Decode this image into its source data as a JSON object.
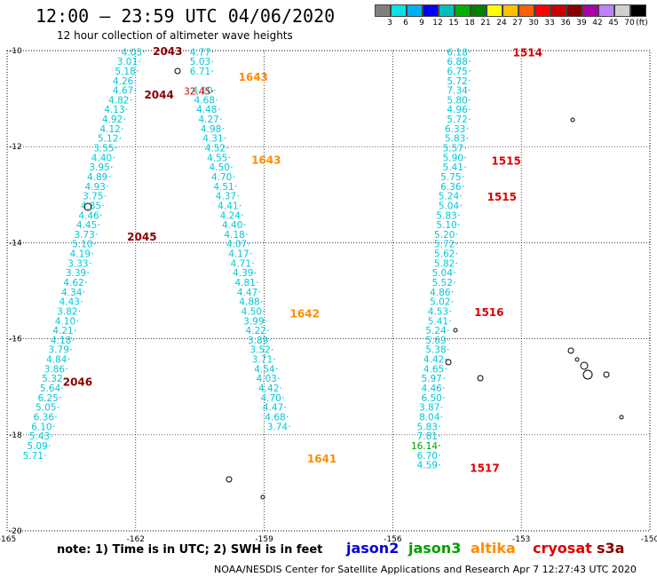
{
  "header": {
    "title": "12:00 – 23:59 UTC 04/06/2020",
    "subtitle": "12 hour collection of altimeter wave heights"
  },
  "legend": {
    "colors": [
      "#808080",
      "#00e5e5",
      "#00b0f0",
      "#0000ff",
      "#00c0c0",
      "#00b000",
      "#008000",
      "#ffff00",
      "#ffc000",
      "#ff6000",
      "#ff0000",
      "#cc0000",
      "#880000",
      "#aa00aa",
      "#c080ff",
      "#d0d0d0",
      "#000000"
    ],
    "labels": [
      "3",
      "6",
      "9",
      "12",
      "15",
      "18",
      "21",
      "24",
      "27",
      "30",
      "33",
      "36",
      "39",
      "42",
      "45",
      "70",
      "(ft)"
    ]
  },
  "chart_data": {
    "type": "scatter",
    "title": "12:00 – 23:59 UTC 04/06/2020",
    "subtitle": "12 hour collection of altimeter wave heights",
    "xlabel": "",
    "ylabel": "",
    "xlim": [
      -165,
      -150
    ],
    "ylim": [
      -20,
      -10
    ],
    "xticks": [
      "-165",
      "-162",
      "-159",
      "-156",
      "-153",
      "-150"
    ],
    "yticks": [
      "-10",
      "-12",
      "-14",
      "-16",
      "-18",
      "-20"
    ],
    "grid": true,
    "series": [
      {
        "name": "cryosat",
        "color": "#00d8e8",
        "text_color": "#00c8d8",
        "points": [
          [
            -162.1,
            -10.08,
            "4.03"
          ],
          [
            -162.2,
            -10.28,
            "3.01"
          ],
          [
            -162.25,
            -10.48,
            "5.18"
          ],
          [
            -162.3,
            -10.68,
            "4.26"
          ],
          [
            -162.3,
            -10.88,
            "4.67"
          ],
          [
            -162.4,
            -11.08,
            "4.82"
          ],
          [
            -162.5,
            -11.28,
            "4.13"
          ],
          [
            -162.55,
            -11.48,
            "4.92"
          ],
          [
            -162.6,
            -11.68,
            "4.12"
          ],
          [
            -162.65,
            -11.88,
            "5.12"
          ],
          [
            -162.75,
            -12.08,
            "3.55"
          ],
          [
            -162.8,
            -12.28,
            "4.40"
          ],
          [
            -162.85,
            -12.48,
            "3.95"
          ],
          [
            -162.9,
            -12.68,
            "4.89"
          ],
          [
            -162.95,
            -12.88,
            "4.93"
          ],
          [
            -163.0,
            -13.08,
            "3.75"
          ],
          [
            -163.05,
            -13.28,
            "4.85"
          ],
          [
            -163.1,
            -13.48,
            "4.46"
          ],
          [
            -163.15,
            -13.68,
            "4.45"
          ],
          [
            -163.2,
            -13.88,
            "3.73"
          ],
          [
            -163.25,
            -14.08,
            "5.10"
          ],
          [
            -163.3,
            -14.28,
            "4.19"
          ],
          [
            -163.35,
            -14.48,
            "3.33"
          ],
          [
            -163.4,
            -14.68,
            "3.39"
          ],
          [
            -163.45,
            -14.88,
            "4.62"
          ],
          [
            -163.5,
            -15.08,
            "4.34"
          ],
          [
            -163.55,
            -15.28,
            "4.43"
          ],
          [
            -163.6,
            -15.48,
            "3.82"
          ],
          [
            -163.65,
            -15.68,
            "4.10"
          ],
          [
            -163.7,
            -15.88,
            "4.21"
          ],
          [
            -163.75,
            -16.08,
            "4.18"
          ],
          [
            -163.8,
            -16.28,
            "3.79"
          ],
          [
            -163.85,
            -16.48,
            "4.84"
          ],
          [
            -163.9,
            -16.68,
            "3.86"
          ],
          [
            -163.95,
            -16.88,
            "5.32"
          ],
          [
            -164.0,
            -17.08,
            "5.64"
          ],
          [
            -164.05,
            -17.28,
            "6.25"
          ],
          [
            -164.1,
            -17.48,
            "5.05"
          ],
          [
            -164.15,
            -17.68,
            "6.36"
          ],
          [
            -164.2,
            -17.88,
            "6.10"
          ],
          [
            -164.25,
            -18.08,
            "5.43"
          ],
          [
            -164.3,
            -18.28,
            "5.09"
          ],
          [
            -164.4,
            -18.48,
            "5.71"
          ],
          [
            -160.5,
            -10.08,
            "4.77"
          ],
          [
            -160.5,
            -10.28,
            "5.03"
          ],
          [
            -160.5,
            -10.48,
            "6.71"
          ],
          [
            -160.45,
            -10.88,
            "4.10"
          ],
          [
            -160.4,
            -11.08,
            "4.68"
          ],
          [
            -160.35,
            -11.28,
            "4.48"
          ],
          [
            -160.3,
            -11.48,
            "4.27"
          ],
          [
            -160.25,
            -11.68,
            "4.98"
          ],
          [
            -160.2,
            -11.88,
            "4.31"
          ],
          [
            -160.15,
            -12.08,
            "4.52"
          ],
          [
            -160.1,
            -12.28,
            "4.55"
          ],
          [
            -160.05,
            -12.48,
            "4.50"
          ],
          [
            -160.0,
            -12.68,
            "4.70"
          ],
          [
            -159.95,
            -12.88,
            "4.51"
          ],
          [
            -159.9,
            -13.08,
            "4.37"
          ],
          [
            -159.85,
            -13.28,
            "4.41"
          ],
          [
            -159.8,
            -13.48,
            "4.24"
          ],
          [
            -159.75,
            -13.68,
            "4.40"
          ],
          [
            -159.7,
            -13.88,
            "4.18"
          ],
          [
            -159.65,
            -14.08,
            "4.07"
          ],
          [
            -159.6,
            -14.28,
            "4.17"
          ],
          [
            -159.55,
            -14.48,
            "4.71"
          ],
          [
            -159.5,
            -14.68,
            "4.39"
          ],
          [
            -159.45,
            -14.88,
            "4.81"
          ],
          [
            -159.4,
            -15.08,
            "4.47"
          ],
          [
            -159.35,
            -15.28,
            "4.88"
          ],
          [
            -159.3,
            -15.48,
            "4.50"
          ],
          [
            -159.25,
            -15.68,
            "3.99"
          ],
          [
            -159.2,
            -15.88,
            "4.22"
          ],
          [
            -159.15,
            -16.08,
            "3.89"
          ],
          [
            -159.1,
            -16.28,
            "3.52"
          ],
          [
            -159.05,
            -16.48,
            "3.71"
          ],
          [
            -159.0,
            -16.68,
            "4.54"
          ],
          [
            -158.95,
            -16.88,
            "4.03"
          ],
          [
            -158.9,
            -17.08,
            "4.42"
          ],
          [
            -158.85,
            -17.28,
            "4.70"
          ],
          [
            -158.8,
            -17.48,
            "4.47"
          ],
          [
            -158.75,
            -17.68,
            "4.68"
          ],
          [
            -158.7,
            -17.88,
            "3.74"
          ],
          [
            -154.5,
            -10.08,
            "6.18"
          ],
          [
            -154.5,
            -10.28,
            "6.88"
          ],
          [
            -154.5,
            -10.48,
            "6.75"
          ],
          [
            -154.5,
            -10.68,
            "5.72"
          ],
          [
            -154.5,
            -10.88,
            "7.34"
          ],
          [
            -154.5,
            -11.08,
            "5.80"
          ],
          [
            -154.5,
            -11.28,
            "4.96"
          ],
          [
            -154.5,
            -11.48,
            "5.72"
          ],
          [
            -154.55,
            -11.68,
            "6.33"
          ],
          [
            -154.55,
            -11.88,
            "5.83"
          ],
          [
            -154.6,
            -12.08,
            "5.57"
          ],
          [
            -154.6,
            -12.28,
            "5.90"
          ],
          [
            -154.6,
            -12.48,
            "5.41"
          ],
          [
            -154.65,
            -12.68,
            "5.75"
          ],
          [
            -154.65,
            -12.88,
            "6.36"
          ],
          [
            -154.7,
            -13.08,
            "5.24"
          ],
          [
            -154.7,
            -13.28,
            "5.04"
          ],
          [
            -154.75,
            -13.48,
            "5.83"
          ],
          [
            -154.75,
            -13.68,
            "5.10"
          ],
          [
            -154.8,
            -13.88,
            "5.20"
          ],
          [
            -154.8,
            -14.08,
            "5.72"
          ],
          [
            -154.8,
            -14.28,
            "5.62"
          ],
          [
            -154.8,
            -14.48,
            "5.82"
          ],
          [
            -154.85,
            -14.68,
            "5.04"
          ],
          [
            -154.85,
            -14.88,
            "5.52"
          ],
          [
            -154.9,
            -15.08,
            "4.86"
          ],
          [
            -154.9,
            -15.28,
            "5.02"
          ],
          [
            -154.95,
            -15.48,
            "4.53"
          ],
          [
            -154.95,
            -15.68,
            "5.41"
          ],
          [
            -155.0,
            -15.88,
            "5.24"
          ],
          [
            -155.0,
            -16.08,
            "5.69"
          ],
          [
            -155.0,
            -16.28,
            "5.38"
          ],
          [
            -155.05,
            -16.48,
            "4.42"
          ],
          [
            -155.05,
            -16.68,
            "4.65"
          ],
          [
            -155.1,
            -16.88,
            "5.97"
          ],
          [
            -155.1,
            -17.08,
            "4.46"
          ],
          [
            -155.1,
            -17.28,
            "6.50"
          ],
          [
            -155.15,
            -17.48,
            "3.87"
          ],
          [
            -155.15,
            -17.68,
            "8.04"
          ],
          [
            -155.2,
            -17.88,
            "5.83"
          ],
          [
            -155.2,
            -18.08,
            "7.81"
          ],
          [
            -155.2,
            -18.48,
            "6.70"
          ],
          [
            -155.2,
            -18.68,
            "4.59"
          ]
        ]
      },
      {
        "name": "cryosat-red",
        "color": "#cc0000",
        "text_color": "#cc0000",
        "points": [
          [
            -160.5,
            -10.9,
            "32.45"
          ]
        ]
      },
      {
        "name": "green",
        "color": "#00a000",
        "text_color": "#00a000",
        "points": [
          [
            -155.2,
            -18.28,
            "16.14"
          ]
        ]
      }
    ],
    "track_labels": [
      {
        "x": -161.6,
        "y": -10.02,
        "text": "2043",
        "color": "#8b0000"
      },
      {
        "x": -161.8,
        "y": -10.92,
        "text": "2044",
        "color": "#8b0000"
      },
      {
        "x": -162.2,
        "y": -13.88,
        "text": "2045",
        "color": "#8b0000"
      },
      {
        "x": -163.7,
        "y": -16.9,
        "text": "2046",
        "color": "#8b0000"
      },
      {
        "x": -159.6,
        "y": -10.55,
        "text": "1643",
        "color": "#ff8c00"
      },
      {
        "x": -159.3,
        "y": -12.28,
        "text": "1643",
        "color": "#ff8c00"
      },
      {
        "x": -158.4,
        "y": -15.48,
        "text": "1642",
        "color": "#ff8c00"
      },
      {
        "x": -158.0,
        "y": -18.5,
        "text": "1641",
        "color": "#ff8c00"
      },
      {
        "x": -153.2,
        "y": -10.05,
        "text": "1514",
        "color": "#dd0000"
      },
      {
        "x": -153.7,
        "y": -12.3,
        "text": "1515",
        "color": "#dd0000"
      },
      {
        "x": -153.8,
        "y": -13.05,
        "text": "1515",
        "color": "#dd0000"
      },
      {
        "x": -154.1,
        "y": -15.45,
        "text": "1516",
        "color": "#dd0000"
      },
      {
        "x": -154.2,
        "y": -18.7,
        "text": "1517",
        "color": "#dd0000"
      }
    ]
  },
  "footer": {
    "note": "note:  1) Time is in UTC; 2) SWH is in feet",
    "satellites": [
      {
        "name": "jason2",
        "color": "#0000dd"
      },
      {
        "name": "jason3",
        "color": "#00a000"
      },
      {
        "name": "altika",
        "color": "#ff8c00"
      },
      {
        "name": "cryosat",
        "color": "#dd0000"
      },
      {
        "name": "s3a",
        "color": "#8b0000"
      }
    ],
    "credit": "NOAA/NESDIS Center for Satellite Applications and Research    Apr  7 12:27:43 UTC 2020"
  }
}
